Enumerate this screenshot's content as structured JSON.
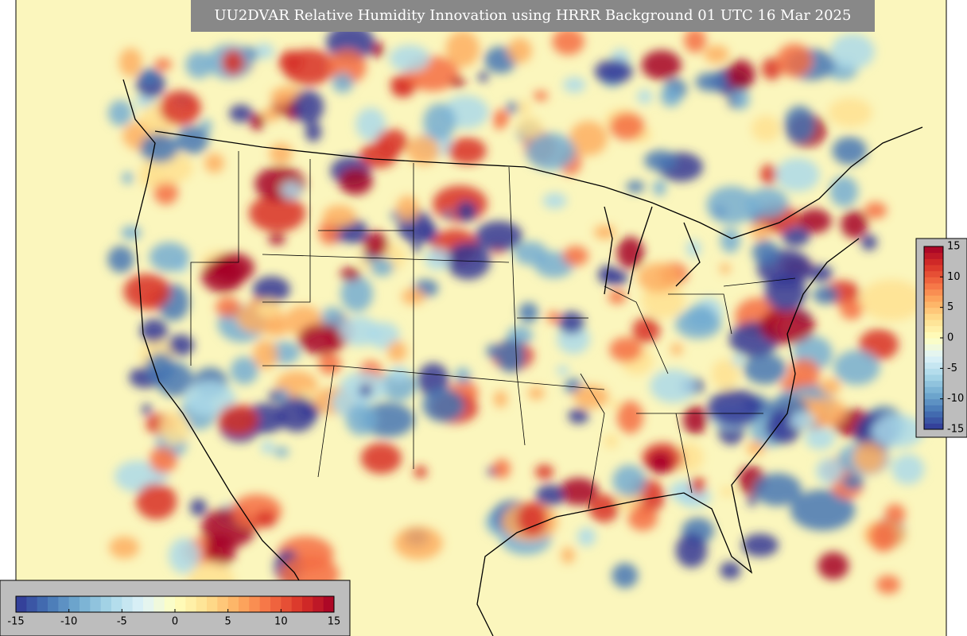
{
  "title": "UU2DVAR Relative Humidity Innovation using HRRR Background 01 UTC 16 Mar 2025",
  "colormap": [
    "#313695",
    "#4575b4",
    "#74add1",
    "#abd9e9",
    "#e0f3f8",
    "#ffffbf",
    "#fee090",
    "#fdae61",
    "#f46d43",
    "#d73027",
    "#a50026"
  ],
  "colorbars": [
    {
      "orientation": "horizontal",
      "range": [
        -15,
        15
      ],
      "ticks": [
        -15,
        -10,
        -5,
        0,
        5,
        10,
        15
      ]
    },
    {
      "orientation": "vertical",
      "range": [
        -15,
        15
      ],
      "ticks": [
        -15,
        -10,
        -5,
        0,
        5,
        10,
        15
      ]
    }
  ]
}
